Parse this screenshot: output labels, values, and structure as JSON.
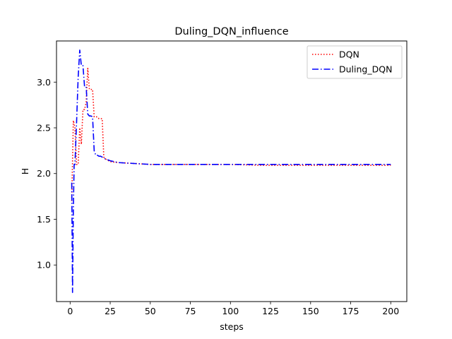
{
  "chart_data": {
    "type": "line",
    "title": "Duling_DQN_influence",
    "xlabel": "steps",
    "ylabel": "H",
    "xlim": [
      -8.5,
      210
    ],
    "ylim": [
      0.6,
      3.45
    ],
    "xticks": [
      0,
      25,
      50,
      75,
      100,
      125,
      150,
      175,
      200
    ],
    "yticks": [
      1.0,
      1.5,
      2.0,
      2.5,
      3.0
    ],
    "ytick_labels": [
      "1.0",
      "1.5",
      "2.0",
      "2.5",
      "3.0"
    ],
    "grid": false,
    "legend_position": "top-right",
    "series": [
      {
        "name": "DQN",
        "color": "#ff0000",
        "style": "dotted",
        "x": [
          1,
          2,
          3,
          4,
          5,
          6,
          7,
          8,
          9,
          10,
          11,
          12,
          13,
          14,
          15,
          16,
          17,
          18,
          19,
          20,
          21,
          22,
          23,
          24,
          25,
          30,
          40,
          50,
          60,
          80,
          100,
          120,
          140,
          160,
          180,
          200
        ],
        "y": [
          1.7,
          2.58,
          2.5,
          2.1,
          2.1,
          2.5,
          2.32,
          2.7,
          2.7,
          2.78,
          3.15,
          2.92,
          2.92,
          2.92,
          2.62,
          2.62,
          2.62,
          2.6,
          2.6,
          2.6,
          2.18,
          2.16,
          2.15,
          2.14,
          2.13,
          2.12,
          2.11,
          2.1,
          2.1,
          2.1,
          2.1,
          2.09,
          2.09,
          2.09,
          2.09,
          2.09
        ]
      },
      {
        "name": "Duling_DQN",
        "color": "#0000ff",
        "style": "dashdot",
        "x": [
          1,
          1.5,
          2,
          2.5,
          3,
          4,
          5,
          6,
          7,
          8,
          9,
          10,
          11,
          12,
          13,
          14,
          15,
          16,
          17,
          18,
          19,
          20,
          22,
          25,
          30,
          40,
          50,
          60,
          80,
          100,
          120,
          140,
          160,
          180,
          200
        ],
        "y": [
          1.9,
          0.7,
          1.6,
          2.1,
          2.1,
          2.55,
          3.05,
          3.35,
          3.18,
          3.18,
          2.95,
          2.95,
          2.65,
          2.63,
          2.63,
          2.62,
          2.25,
          2.2,
          2.2,
          2.19,
          2.19,
          2.18,
          2.16,
          2.14,
          2.12,
          2.11,
          2.1,
          2.1,
          2.1,
          2.1,
          2.1,
          2.1,
          2.1,
          2.1,
          2.1
        ]
      }
    ]
  }
}
